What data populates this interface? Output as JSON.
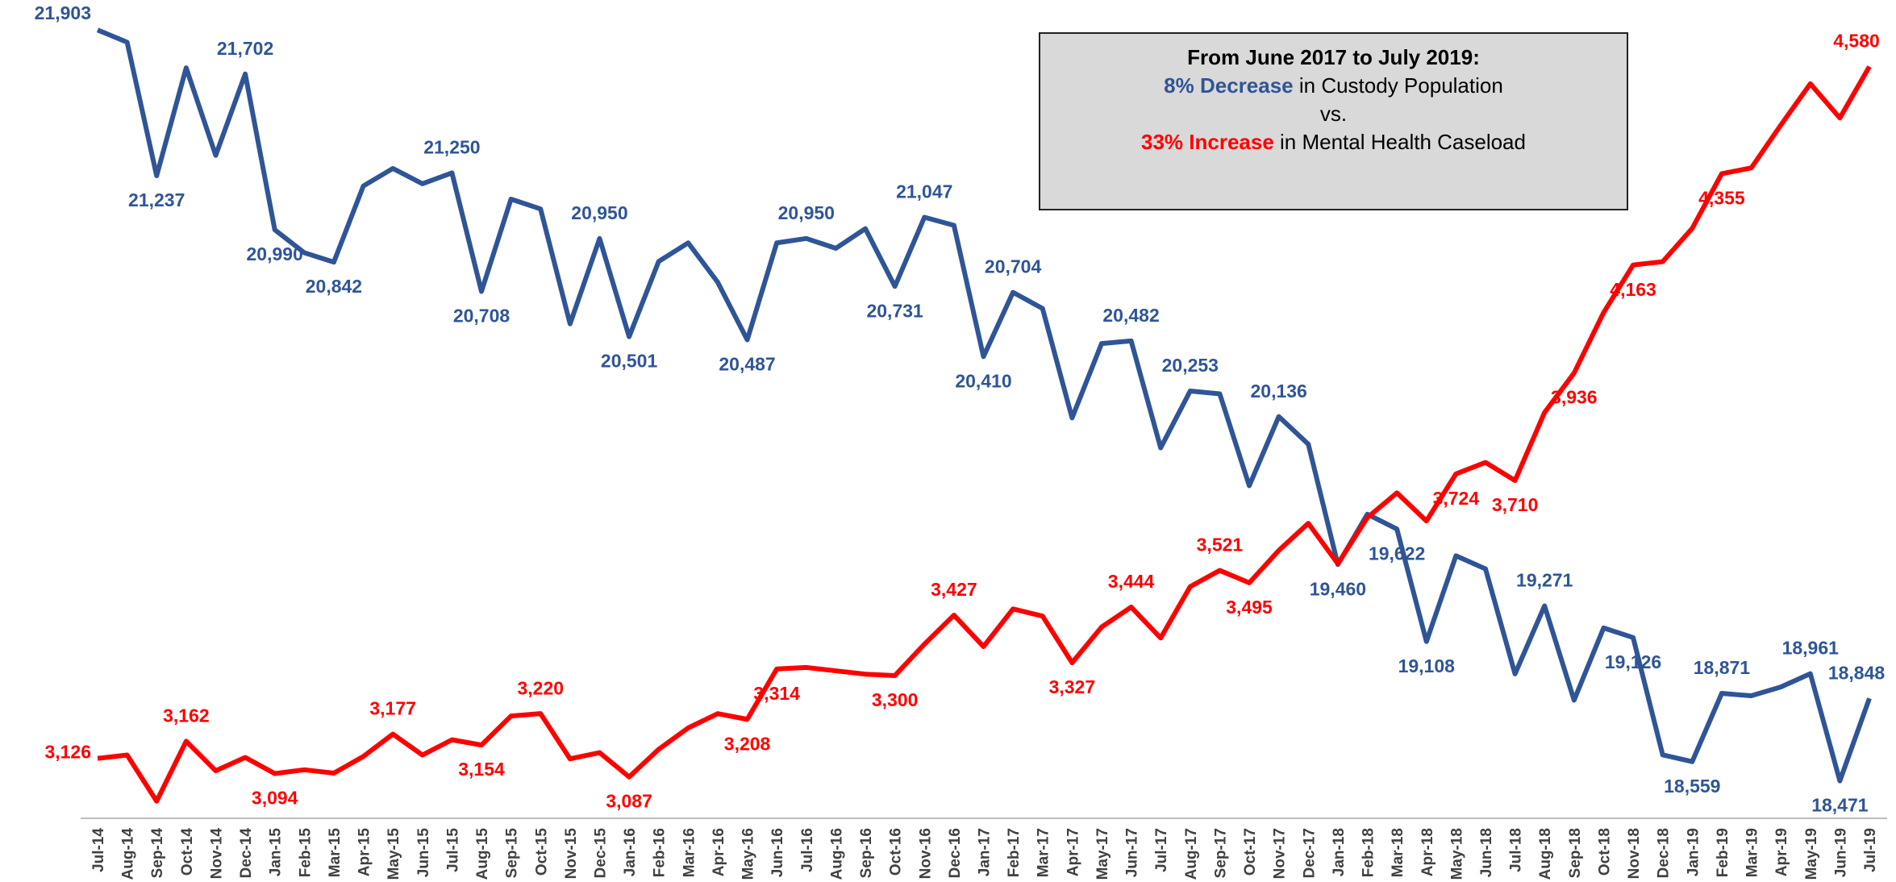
{
  "chart_data": {
    "type": "line",
    "categories": [
      "Jul-14",
      "Aug-14",
      "Sep-14",
      "Oct-14",
      "Nov-14",
      "Dec-14",
      "Jan-15",
      "Feb-15",
      "Mar-15",
      "Apr-15",
      "May-15",
      "Jun-15",
      "Jul-15",
      "Aug-15",
      "Sep-15",
      "Oct-15",
      "Nov-15",
      "Dec-15",
      "Jan-16",
      "Feb-16",
      "Mar-16",
      "Apr-16",
      "May-16",
      "Jun-16",
      "Jul-16",
      "Aug-16",
      "Sep-16",
      "Oct-16",
      "Nov-16",
      "Dec-16",
      "Jan-17",
      "Feb-17",
      "Mar-17",
      "Apr-17",
      "May-17",
      "Jun-17",
      "Jul-17",
      "Aug-17",
      "Sep-17",
      "Oct-17",
      "Nov-17",
      "Dec-17",
      "Jan-18",
      "Feb-18",
      "Mar-18",
      "Apr-18",
      "May-18",
      "Jun-18",
      "Jul-18",
      "Aug-18",
      "Sep-18",
      "Oct-18",
      "Nov-18",
      "Dec-18",
      "Jan-19",
      "Feb-19",
      "Mar-19",
      "Apr-19",
      "May-19",
      "Jun-19",
      "Jul-19"
    ],
    "series": [
      {
        "color": "#2f5597",
        "axis": "y",
        "values": [
          21903,
          21847,
          21237,
          21730,
          21330,
          21702,
          20990,
          20885,
          20842,
          21190,
          21270,
          21200,
          21250,
          20708,
          21130,
          21085,
          20560,
          20950,
          20501,
          20845,
          20930,
          20750,
          20487,
          20930,
          20950,
          20905,
          20995,
          20731,
          21047,
          21010,
          20410,
          20704,
          20630,
          20130,
          20470,
          20482,
          19993,
          20253,
          20240,
          19820,
          20136,
          20010,
          19460,
          19690,
          19622,
          19108,
          19500,
          19440,
          18960,
          19271,
          18840,
          19170,
          19126,
          18590,
          18559,
          18871,
          18860,
          18900,
          18961,
          18471,
          18848
        ],
        "value_labels": [
          "21,903",
          null,
          "21,237",
          null,
          null,
          "21,702",
          "20,990",
          null,
          "20,842",
          null,
          null,
          null,
          "21,250",
          "20,708",
          null,
          null,
          null,
          "20,950",
          "20,501",
          null,
          null,
          null,
          "20,487",
          null,
          "20,950",
          null,
          null,
          "20,731",
          "21,047",
          null,
          "20,410",
          "20,704",
          null,
          null,
          null,
          "20,482",
          null,
          "20,253",
          null,
          null,
          "20,136",
          null,
          "19,460",
          null,
          "19,622",
          "19,108",
          null,
          null,
          null,
          "19,271",
          null,
          null,
          "19,126",
          null,
          "18,559",
          "18,871",
          null,
          null,
          "18,961",
          "18,471",
          "18,848"
        ]
      },
      {
        "color": "#ff0000",
        "axis": "y2",
        "values": [
          3126,
          3133,
          3036,
          3162,
          3100,
          3128,
          3094,
          3102,
          3095,
          3130,
          3177,
          3133,
          3165,
          3154,
          3215,
          3220,
          3125,
          3138,
          3087,
          3145,
          3190,
          3220,
          3208,
          3314,
          3317,
          3310,
          3303,
          3300,
          3366,
          3427,
          3361,
          3440,
          3425,
          3327,
          3402,
          3444,
          3379,
          3487,
          3521,
          3495,
          3563,
          3620,
          3535,
          3632,
          3684,
          3625,
          3724,
          3748,
          3710,
          3853,
          3936,
          4063,
          4163,
          4170,
          4240,
          4355,
          4367,
          4457,
          4544,
          4472,
          4580
        ],
        "value_labels": [
          "3,126",
          null,
          null,
          "3,162",
          null,
          null,
          "3,094",
          null,
          null,
          null,
          "3,177",
          null,
          null,
          "3,154",
          null,
          "3,220",
          null,
          null,
          "3,087",
          null,
          null,
          null,
          "3,208",
          "3,314",
          null,
          null,
          null,
          "3,300",
          null,
          "3,427",
          null,
          null,
          null,
          "3,327",
          null,
          "3,444",
          null,
          null,
          "3,521",
          "3,495",
          null,
          null,
          null,
          null,
          null,
          null,
          "3,724",
          null,
          "3,710",
          null,
          "3,936",
          null,
          "4,163",
          null,
          null,
          "4,355",
          null,
          null,
          null,
          null,
          "4,580"
        ]
      }
    ],
    "ylim": [
      18300,
      22040
    ],
    "y2lim": [
      3000,
      4720
    ],
    "annotation": {
      "line1": "From June 2017 to July 2019:",
      "line2": [
        "8% Decrease",
        " in Custody Population"
      ],
      "line3": "vs.",
      "line4": [
        "33% Increase",
        " in Mental Health Caseload"
      ]
    }
  }
}
